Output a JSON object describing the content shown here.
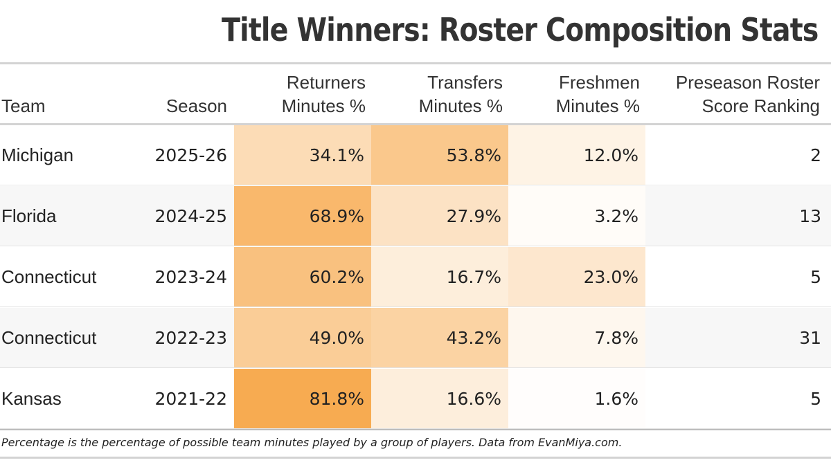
{
  "title": "Title Winners: Roster Composition Stats",
  "headers": {
    "team": "Team",
    "season": "Season",
    "returners_line1": "Returners",
    "returners_line2": "Minutes %",
    "transfers_line1": "Transfers",
    "transfers_line2": "Minutes %",
    "freshmen_line1": "Freshmen",
    "freshmen_line2": "Minutes %",
    "ranking_line1": "Preseason Roster",
    "ranking_line2": "Score Ranking"
  },
  "footnote": "Percentage is the percentage of possible team minutes played by a group of players. Data from EvanMiya.com.",
  "colors": {
    "heat_low": "#ffffff",
    "heat_high": "#f7a84a",
    "rule": "#d3d3d3",
    "alt_row": "#f7f7f7"
  },
  "chart_data": {
    "type": "table",
    "title": "Title Winners: Roster Composition Stats",
    "columns": [
      "Team",
      "Season",
      "Returners Minutes %",
      "Transfers Minutes %",
      "Freshmen Minutes %",
      "Preseason Roster Score Ranking"
    ],
    "rows": [
      {
        "team": "Michigan",
        "season": "2025-26",
        "returners": "34.1%",
        "transfers": "53.8%",
        "freshmen": "12.0%",
        "ranking": "2",
        "returners_value": 34.1,
        "transfers_value": 53.8,
        "freshmen_value": 12.0
      },
      {
        "team": "Florida",
        "season": "2024-25",
        "returners": "68.9%",
        "transfers": "27.9%",
        "freshmen": "3.2%",
        "ranking": "13",
        "returners_value": 68.9,
        "transfers_value": 27.9,
        "freshmen_value": 3.2
      },
      {
        "team": "Connecticut",
        "season": "2023-24",
        "returners": "60.2%",
        "transfers": "16.7%",
        "freshmen": "23.0%",
        "ranking": "5",
        "returners_value": 60.2,
        "transfers_value": 16.7,
        "freshmen_value": 23.0
      },
      {
        "team": "Connecticut",
        "season": "2022-23",
        "returners": "49.0%",
        "transfers": "43.2%",
        "freshmen": "7.8%",
        "ranking": "31",
        "returners_value": 49.0,
        "transfers_value": 43.2,
        "freshmen_value": 7.8
      },
      {
        "team": "Kansas",
        "season": "2021-22",
        "returners": "81.8%",
        "transfers": "16.6%",
        "freshmen": "1.6%",
        "ranking": "5",
        "returners_value": 81.8,
        "transfers_value": 16.6,
        "freshmen_value": 1.6
      }
    ]
  }
}
